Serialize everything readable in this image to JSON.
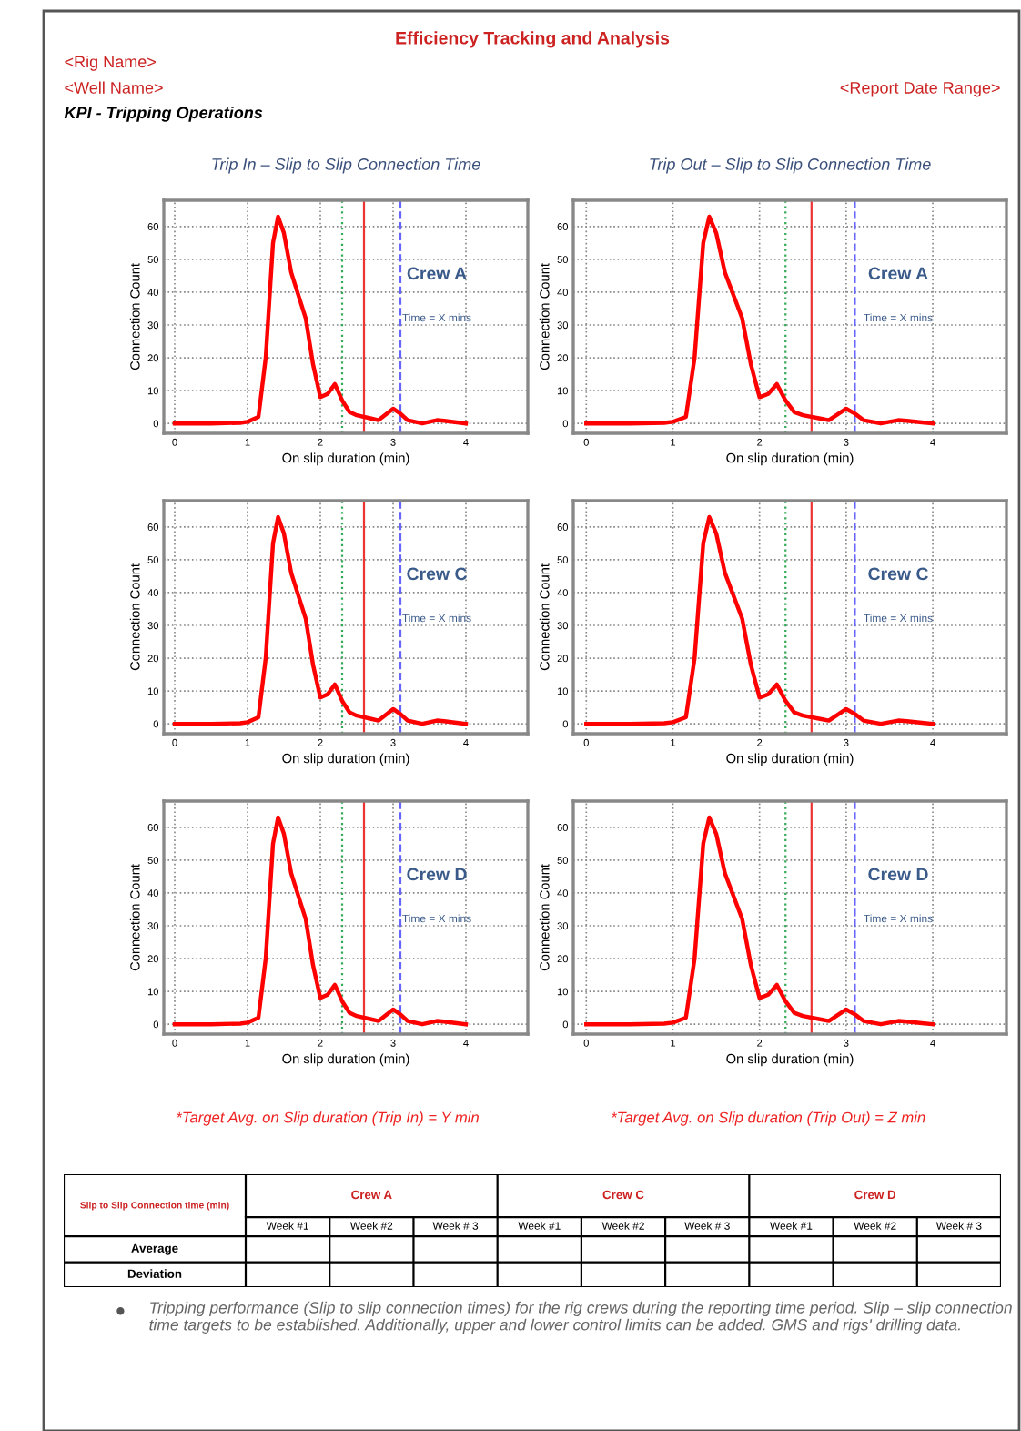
{
  "chart_data": [
    {
      "type": "other",
      "title": "Efficiency Tracking and Analysis",
      "annotations": [
        "<Rig Name>",
        "<Well Name>",
        "<Report Date Range>",
        "KPI - Tripping Operations"
      ]
    },
    {
      "type": "line",
      "title": "Trip In – Slip to Slip Connection Time",
      "xlabel": "On slip duration (min)",
      "ylabel": "Connection Count",
      "x": [
        0,
        0.5,
        0.9,
        1.0,
        1.15,
        1.25,
        1.35,
        1.42,
        1.5,
        1.6,
        1.8,
        1.9,
        2.0,
        2.1,
        2.2,
        2.3,
        2.4,
        2.5,
        2.7,
        2.8,
        3.0,
        3.1,
        3.2,
        3.4,
        3.6,
        3.7,
        4.0
      ],
      "series": [
        {
          "color": "#ff0000",
          "values": [
            0,
            0,
            0.2,
            0.5,
            2,
            20,
            55,
            63,
            58,
            46,
            32,
            18,
            8,
            9,
            12,
            7,
            3.5,
            2.5,
            1.5,
            1,
            4.5,
            3,
            1,
            0,
            1,
            0.8,
            0
          ]
        }
      ],
      "xlim": [
        -0.15,
        4.85
      ],
      "ylim": [
        -3,
        68
      ],
      "xticks": [
        0,
        1,
        2,
        3,
        4
      ],
      "yticks": [
        0,
        10,
        20,
        30,
        40,
        50,
        60
      ],
      "grid": true,
      "line_style": "solid",
      "ref_lines": [
        {
          "axis": "x",
          "value": 2.3,
          "color": "#33aa55",
          "line_style": "dotted"
        },
        {
          "axis": "x",
          "value": 2.6,
          "color": "#ee3333",
          "line_style": "solid"
        },
        {
          "axis": "x",
          "value": 3.1,
          "color": "#6666ff",
          "line_style": "dashed"
        }
      ],
      "annotations": [
        "Crew A",
        "Time = X mins"
      ]
    },
    {
      "type": "line",
      "title": "Trip Out – Slip to Slip Connection Time",
      "xlabel": "On slip duration (min)",
      "ylabel": "Connection Count",
      "x": [
        0,
        0.5,
        0.9,
        1.0,
        1.15,
        1.25,
        1.35,
        1.42,
        1.5,
        1.6,
        1.8,
        1.9,
        2.0,
        2.1,
        2.2,
        2.3,
        2.4,
        2.5,
        2.7,
        2.8,
        3.0,
        3.1,
        3.2,
        3.4,
        3.6,
        3.7,
        4.0
      ],
      "series": [
        {
          "color": "#ff0000",
          "values": [
            0,
            0,
            0.2,
            0.5,
            2,
            20,
            55,
            63,
            58,
            46,
            32,
            18,
            8,
            9,
            12,
            7,
            3.5,
            2.5,
            1.5,
            1,
            4.5,
            3,
            1,
            0,
            1,
            0.8,
            0
          ]
        }
      ],
      "xlim": [
        -0.15,
        4.85
      ],
      "ylim": [
        -3,
        68
      ],
      "xticks": [
        0,
        1,
        2,
        3,
        4
      ],
      "yticks": [
        0,
        10,
        20,
        30,
        40,
        50,
        60
      ],
      "grid": true,
      "line_style": "solid",
      "ref_lines": [
        {
          "axis": "x",
          "value": 2.3,
          "color": "#33aa55",
          "line_style": "dotted"
        },
        {
          "axis": "x",
          "value": 2.6,
          "color": "#ee3333",
          "line_style": "solid"
        },
        {
          "axis": "x",
          "value": 3.1,
          "color": "#6666ff",
          "line_style": "dashed"
        }
      ],
      "annotations": [
        "Crew A",
        "Time = X mins"
      ]
    },
    {
      "type": "line",
      "xlabel": "On slip duration (min)",
      "ylabel": "Connection Count",
      "x": [
        0,
        0.5,
        0.9,
        1.0,
        1.15,
        1.25,
        1.35,
        1.42,
        1.5,
        1.6,
        1.8,
        1.9,
        2.0,
        2.1,
        2.2,
        2.3,
        2.4,
        2.5,
        2.7,
        2.8,
        3.0,
        3.1,
        3.2,
        3.4,
        3.6,
        3.7,
        4.0
      ],
      "series": [
        {
          "color": "#ff0000",
          "values": [
            0,
            0,
            0.2,
            0.5,
            2,
            20,
            55,
            63,
            58,
            46,
            32,
            18,
            8,
            9,
            12,
            7,
            3.5,
            2.5,
            1.5,
            1,
            4.5,
            3,
            1,
            0,
            1,
            0.8,
            0
          ]
        }
      ],
      "xlim": [
        -0.15,
        4.85
      ],
      "ylim": [
        -3,
        68
      ],
      "xticks": [
        0,
        1,
        2,
        3,
        4
      ],
      "yticks": [
        0,
        10,
        20,
        30,
        40,
        50,
        60
      ],
      "grid": true,
      "line_style": "solid",
      "ref_lines": [
        {
          "axis": "x",
          "value": 2.3,
          "color": "#33aa55",
          "line_style": "dotted"
        },
        {
          "axis": "x",
          "value": 2.6,
          "color": "#ee3333",
          "line_style": "solid"
        },
        {
          "axis": "x",
          "value": 3.1,
          "color": "#6666ff",
          "line_style": "dashed"
        }
      ],
      "annotations": [
        "Crew C",
        "Time = X mins"
      ]
    },
    {
      "type": "line",
      "xlabel": "On slip duration (min)",
      "ylabel": "Connection Count",
      "x": [
        0,
        0.5,
        0.9,
        1.0,
        1.15,
        1.25,
        1.35,
        1.42,
        1.5,
        1.6,
        1.8,
        1.9,
        2.0,
        2.1,
        2.2,
        2.3,
        2.4,
        2.5,
        2.7,
        2.8,
        3.0,
        3.1,
        3.2,
        3.4,
        3.6,
        3.7,
        4.0
      ],
      "series": [
        {
          "color": "#ff0000",
          "values": [
            0,
            0,
            0.2,
            0.5,
            2,
            20,
            55,
            63,
            58,
            46,
            32,
            18,
            8,
            9,
            12,
            7,
            3.5,
            2.5,
            1.5,
            1,
            4.5,
            3,
            1,
            0,
            1,
            0.8,
            0
          ]
        }
      ],
      "xlim": [
        -0.15,
        4.85
      ],
      "ylim": [
        -3,
        68
      ],
      "xticks": [
        0,
        1,
        2,
        3,
        4
      ],
      "yticks": [
        0,
        10,
        20,
        30,
        40,
        50,
        60
      ],
      "grid": true,
      "line_style": "solid",
      "ref_lines": [
        {
          "axis": "x",
          "value": 2.3,
          "color": "#33aa55",
          "line_style": "dotted"
        },
        {
          "axis": "x",
          "value": 2.6,
          "color": "#ee3333",
          "line_style": "solid"
        },
        {
          "axis": "x",
          "value": 3.1,
          "color": "#6666ff",
          "line_style": "dashed"
        }
      ],
      "annotations": [
        "Crew C",
        "Time = X mins"
      ]
    },
    {
      "type": "line",
      "xlabel": "On slip duration (min)",
      "ylabel": "Connection Count",
      "x": [
        0,
        0.5,
        0.9,
        1.0,
        1.15,
        1.25,
        1.35,
        1.42,
        1.5,
        1.6,
        1.8,
        1.9,
        2.0,
        2.1,
        2.2,
        2.3,
        2.4,
        2.5,
        2.7,
        2.8,
        3.0,
        3.1,
        3.2,
        3.4,
        3.6,
        3.7,
        4.0
      ],
      "series": [
        {
          "color": "#ff0000",
          "values": [
            0,
            0,
            0.2,
            0.5,
            2,
            20,
            55,
            63,
            58,
            46,
            32,
            18,
            8,
            9,
            12,
            7,
            3.5,
            2.5,
            1.5,
            1,
            4.5,
            3,
            1,
            0,
            1,
            0.8,
            0
          ]
        }
      ],
      "xlim": [
        -0.15,
        4.85
      ],
      "ylim": [
        -3,
        68
      ],
      "xticks": [
        0,
        1,
        2,
        3,
        4
      ],
      "yticks": [
        0,
        10,
        20,
        30,
        40,
        50,
        60
      ],
      "grid": true,
      "line_style": "solid",
      "ref_lines": [
        {
          "axis": "x",
          "value": 2.3,
          "color": "#33aa55",
          "line_style": "dotted"
        },
        {
          "axis": "x",
          "value": 2.6,
          "color": "#ee3333",
          "line_style": "solid"
        },
        {
          "axis": "x",
          "value": 3.1,
          "color": "#6666ff",
          "line_style": "dashed"
        }
      ],
      "annotations": [
        "Crew D",
        "Time = X mins",
        "*Target Avg. on Slip duration (Trip In) = Y min"
      ]
    },
    {
      "type": "line",
      "xlabel": "On slip duration (min)",
      "ylabel": "Connection Count",
      "x": [
        0,
        0.5,
        0.9,
        1.0,
        1.15,
        1.25,
        1.35,
        1.42,
        1.5,
        1.6,
        1.8,
        1.9,
        2.0,
        2.1,
        2.2,
        2.3,
        2.4,
        2.5,
        2.7,
        2.8,
        3.0,
        3.1,
        3.2,
        3.4,
        3.6,
        3.7,
        4.0
      ],
      "series": [
        {
          "color": "#ff0000",
          "values": [
            0,
            0,
            0.2,
            0.5,
            2,
            20,
            55,
            63,
            58,
            46,
            32,
            18,
            8,
            9,
            12,
            7,
            3.5,
            2.5,
            1.5,
            1,
            4.5,
            3,
            1,
            0,
            1,
            0.8,
            0
          ]
        }
      ],
      "xlim": [
        -0.15,
        4.85
      ],
      "ylim": [
        -3,
        68
      ],
      "xticks": [
        0,
        1,
        2,
        3,
        4
      ],
      "yticks": [
        0,
        10,
        20,
        30,
        40,
        50,
        60
      ],
      "grid": true,
      "line_style": "solid",
      "ref_lines": [
        {
          "axis": "x",
          "value": 2.3,
          "color": "#33aa55",
          "line_style": "dotted"
        },
        {
          "axis": "x",
          "value": 2.6,
          "color": "#ee3333",
          "line_style": "solid"
        },
        {
          "axis": "x",
          "value": 3.1,
          "color": "#6666ff",
          "line_style": "dashed"
        }
      ],
      "annotations": [
        "Crew D",
        "Time = X mins",
        "*Target Avg. on Slip duration (Trip Out) = Z min"
      ]
    },
    {
      "type": "other",
      "annotations": [
        "Slip to Slip Connection time (min)",
        "Crew A",
        "Crew C",
        "Crew D",
        "Week #1",
        "Week #2",
        "Week # 3",
        "Week #1",
        "Week #2",
        "Week # 3",
        "Week #1",
        "Week #2",
        "Week # 3",
        "Average",
        "Deviation"
      ]
    },
    {
      "type": "other",
      "annotations": [
        "Tripping performance (Slip to slip connection times) for the rig crews during the reporting time period. Slip – slip connection time targets to be established. Additionally, upper and lower control limits can be added. GMS and rigs' drilling data."
      ]
    }
  ]
}
